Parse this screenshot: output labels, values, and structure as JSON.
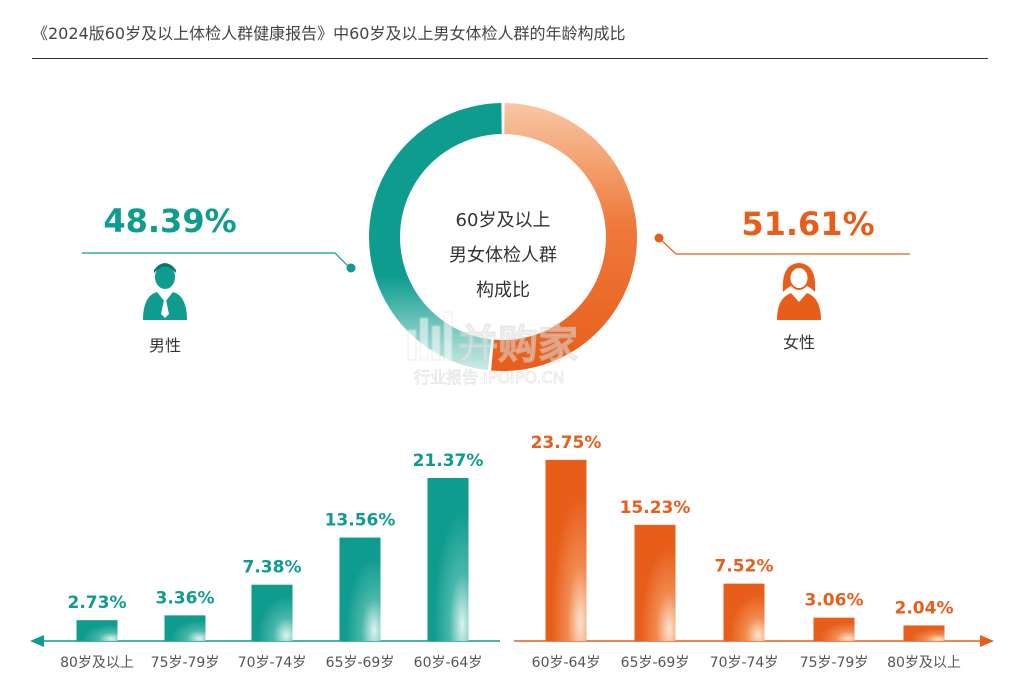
{
  "title": "《2024版60岁及以上体检人群健康报告》中60岁及以上男女体检人群的年龄构成比",
  "colors": {
    "male": "#0E9C8E",
    "female": "#E85D1A",
    "female_light": "#F9C7A4",
    "male_light": "#CDEBE7",
    "axis_text": "#555555"
  },
  "donut": {
    "center_lines": [
      "60岁及以上",
      "男女体检人群",
      "构成比"
    ],
    "male": {
      "label": "男性",
      "value_text": "48.39%",
      "value": 48.39,
      "icon": "male-user-icon"
    },
    "female": {
      "label": "女性",
      "value_text": "51.61%",
      "value": 51.61,
      "icon": "female-user-icon"
    }
  },
  "watermark": {
    "brand": "并购家",
    "sub": "行业报告 IPOIPO.CN"
  },
  "chart_data": [
    {
      "type": "pie",
      "categories": [
        "男性",
        "女性"
      ],
      "values": [
        48.39,
        51.61
      ],
      "title": "60岁及以上男女体检人群构成比"
    },
    {
      "type": "bar",
      "series": [
        {
          "name": "男性",
          "categories": [
            "80岁及以上",
            "75岁-79岁",
            "70岁-74岁",
            "65岁-69岁",
            "60岁-64岁"
          ],
          "values": [
            2.73,
            3.36,
            7.38,
            13.56,
            21.37
          ],
          "labels": [
            "2.73%",
            "3.36%",
            "7.38%",
            "13.56%",
            "21.37%"
          ]
        },
        {
          "name": "女性",
          "categories": [
            "60岁-64岁",
            "65岁-69岁",
            "70岁-74岁",
            "75岁-79岁",
            "80岁及以上"
          ],
          "values": [
            23.75,
            15.23,
            7.52,
            3.06,
            2.04
          ],
          "labels": [
            "23.75%",
            "15.23%",
            "7.52%",
            "3.06%",
            "2.04%"
          ]
        }
      ],
      "ylim": [
        0,
        25
      ]
    }
  ]
}
